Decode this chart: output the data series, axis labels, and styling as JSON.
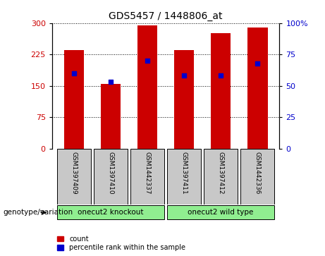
{
  "title": "GDS5457 / 1448806_at",
  "samples": [
    "GSM1397409",
    "GSM1397410",
    "GSM1442337",
    "GSM1397411",
    "GSM1397412",
    "GSM1442336"
  ],
  "bar_heights": [
    235,
    155,
    295,
    235,
    275,
    290
  ],
  "percentile_values": [
    60,
    53,
    70,
    58,
    58,
    68
  ],
  "bar_color": "#cc0000",
  "dot_color": "#0000cc",
  "ylim_left": [
    0,
    300
  ],
  "ylim_right": [
    0,
    100
  ],
  "yticks_left": [
    0,
    75,
    150,
    225,
    300
  ],
  "yticks_right": [
    0,
    25,
    50,
    75,
    100
  ],
  "groups": [
    {
      "label": "onecut2 knockout",
      "color": "#90ee90",
      "start": 0,
      "end": 2
    },
    {
      "label": "onecut2 wild type",
      "color": "#90ee90",
      "start": 3,
      "end": 5
    }
  ],
  "group_label": "genotype/variation",
  "legend_count_label": "count",
  "legend_pct_label": "percentile rank within the sample",
  "left_label_color": "#cc0000",
  "right_label_color": "#0000cc",
  "tick_box_color": "#c8c8c8"
}
